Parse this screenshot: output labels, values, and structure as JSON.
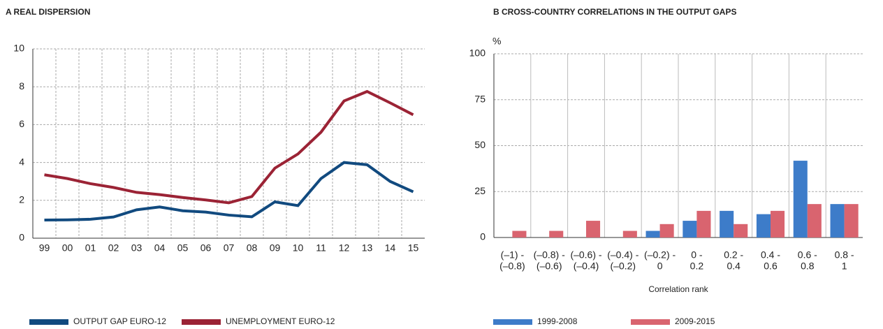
{
  "chart_data": [
    {
      "type": "line",
      "title": "A  REAL DISPERSION",
      "categories": [
        "99",
        "00",
        "01",
        "02",
        "03",
        "04",
        "05",
        "06",
        "07",
        "08",
        "09",
        "10",
        "11",
        "12",
        "13",
        "14",
        "15"
      ],
      "series": [
        {
          "name": "OUTPUT GAP EURO-12",
          "color": "#114a7f",
          "values": [
            0.96,
            0.97,
            1.0,
            1.12,
            1.5,
            1.65,
            1.45,
            1.38,
            1.22,
            1.13,
            1.92,
            1.72,
            3.15,
            4.0,
            3.88,
            3.0,
            2.45
          ]
        },
        {
          "name": "UNEMPLOYMENT EURO-12",
          "color": "#9b2335",
          "values": [
            3.35,
            3.15,
            2.88,
            2.68,
            2.42,
            2.3,
            2.15,
            2.02,
            1.87,
            2.2,
            3.7,
            4.45,
            5.6,
            7.25,
            7.75,
            7.15,
            6.52
          ]
        }
      ],
      "ylim": [
        0,
        10
      ],
      "yticks": [
        0,
        2,
        4,
        6,
        8,
        10
      ],
      "grid": true
    },
    {
      "type": "bar",
      "title": "B  CROSS-COUNTRY CORRELATIONS IN THE OUTPUT GAPS",
      "y_label": "%",
      "x_label": "Correlation rank",
      "categories": [
        [
          "(–1) -",
          "(–0.8)"
        ],
        [
          "(–0.8) -",
          "(–0.6)"
        ],
        [
          "(–0.6) -",
          "(–0.4)"
        ],
        [
          "(–0.4) -",
          "(–0.2)"
        ],
        [
          "(–0.2) -",
          "0"
        ],
        [
          "0 -",
          "0.2"
        ],
        [
          "0.2 -",
          "0.4"
        ],
        [
          "0.4 -",
          "0.6"
        ],
        [
          "0.6 -",
          "0.8"
        ],
        [
          "0.8 -",
          "1"
        ]
      ],
      "series": [
        {
          "name": "1999-2008",
          "color": "#3d7cc9",
          "values": [
            0,
            0,
            0,
            0,
            3.6,
            9.1,
            14.5,
            12.7,
            41.8,
            18.2
          ]
        },
        {
          "name": "2009-2015",
          "color": "#d9646f",
          "values": [
            3.6,
            3.6,
            9.1,
            3.6,
            7.3,
            14.5,
            7.3,
            14.5,
            18.2,
            18.2
          ]
        }
      ],
      "ylim": [
        0,
        100
      ],
      "yticks": [
        0,
        25,
        50,
        75,
        100
      ],
      "grid": true
    }
  ]
}
